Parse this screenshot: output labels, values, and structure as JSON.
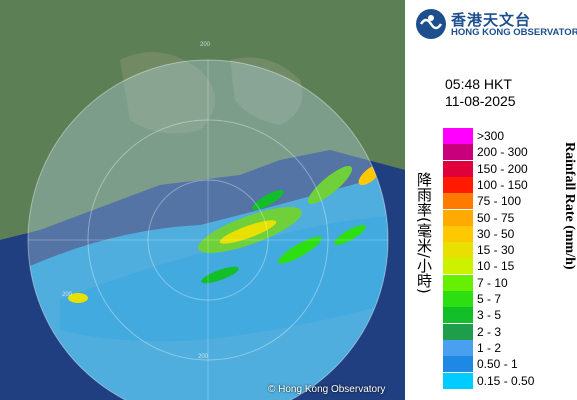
{
  "header": {
    "org_name_zh": "香港天文台",
    "org_name_en": "HONG KONG OBSERVATORY",
    "emblem_icon": "hko-emblem-icon"
  },
  "timestamp": {
    "time": "05:48 HKT",
    "date": "11-08-2025"
  },
  "legend": {
    "label_zh": "降雨率(毫米/小時)",
    "label_en": "Rainfall Rate (mm/h)",
    "items": [
      {
        "range": ">300",
        "color": "#ff00ff"
      },
      {
        "range": "200 - 300",
        "color": "#c8007c"
      },
      {
        "range": "150 - 200",
        "color": "#e0003c"
      },
      {
        "range": "100 - 150",
        "color": "#ff1a00"
      },
      {
        "range": "75 - 100",
        "color": "#ff7a00"
      },
      {
        "range": "50 - 75",
        "color": "#ffaa00"
      },
      {
        "range": "30 - 50",
        "color": "#ffc800"
      },
      {
        "range": "15 - 30",
        "color": "#e8e000"
      },
      {
        "range": "10 - 15",
        "color": "#ccf200"
      },
      {
        "range": "7 - 10",
        "color": "#66f000"
      },
      {
        "range": "5 - 7",
        "color": "#2ddf10"
      },
      {
        "range": "3 - 5",
        "color": "#12bf28"
      },
      {
        "range": "2 - 3",
        "color": "#1e9d4a"
      },
      {
        "range": "1 - 2",
        "color": "#4aa0f0"
      },
      {
        "range": "0.50 - 1",
        "color": "#1e88e5"
      },
      {
        "range": "0.15 - 0.50",
        "color": "#00ccff"
      }
    ]
  },
  "map": {
    "range_ring_label": "200",
    "copyright": "© Hong Kong Observatory"
  }
}
